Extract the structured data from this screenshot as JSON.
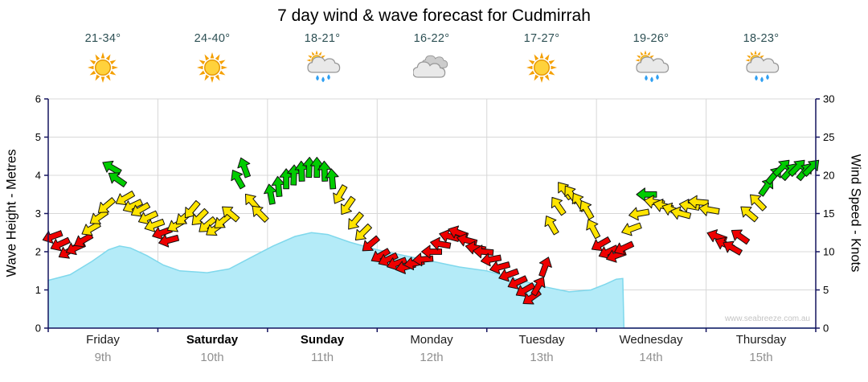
{
  "title": "7 day wind & wave forecast for Cudmirrah",
  "watermark": "www.seabreeze.com.au",
  "days": [
    {
      "name": "Friday",
      "date": "9th",
      "temp": "21-34°",
      "icon": "sunny",
      "weekend": false
    },
    {
      "name": "Saturday",
      "date": "10th",
      "temp": "24-40°",
      "icon": "sunny",
      "weekend": true
    },
    {
      "name": "Sunday",
      "date": "11th",
      "temp": "18-21°",
      "icon": "sun-rain",
      "weekend": true
    },
    {
      "name": "Monday",
      "date": "12th",
      "temp": "16-22°",
      "icon": "cloudy",
      "weekend": false
    },
    {
      "name": "Tuesday",
      "date": "13th",
      "temp": "17-27°",
      "icon": "sunny",
      "weekend": false
    },
    {
      "name": "Wednesday",
      "date": "14th",
      "temp": "19-26°",
      "icon": "sun-rain",
      "weekend": false
    },
    {
      "name": "Thursday",
      "date": "15th",
      "temp": "18-23°",
      "icon": "sun-rain",
      "weekend": false
    }
  ],
  "axes": {
    "left_label": "Wave Height - Metres",
    "right_label": "Wind Speed - Knots",
    "wave_ticks": [
      0,
      1,
      2,
      3,
      4,
      5,
      6
    ],
    "wind_ticks": [
      0,
      5,
      10,
      15,
      20,
      25,
      30
    ],
    "wave_max": 6,
    "wind_max": 30
  },
  "colors": {
    "wind_red": "#ee0000",
    "wind_yellow": "#ffe400",
    "wind_green": "#00cc00",
    "wave_fill": "#b4ebf8",
    "wave_stroke": "#7fd8ec",
    "axis": "#14145f",
    "grid": "#d8d8d8",
    "temp_text": "#2d5054",
    "date_text": "#909090"
  },
  "chart_data": [
    {
      "type": "area",
      "name": "Wave Height (m)",
      "x_unit": "days from Friday 9th 00:00",
      "ylim": [
        0,
        6
      ],
      "x": [
        0,
        0.2,
        0.4,
        0.55,
        0.65,
        0.75,
        0.9,
        1.05,
        1.2,
        1.45,
        1.65,
        1.85,
        2.05,
        2.25,
        2.4,
        2.55,
        2.75,
        3.0,
        3.25,
        3.5,
        3.75,
        4.0,
        4.25,
        4.5,
        4.75,
        4.95,
        5.08,
        5.18,
        5.24,
        5.25,
        7
      ],
      "y": [
        1.25,
        1.4,
        1.75,
        2.05,
        2.15,
        2.1,
        1.9,
        1.65,
        1.5,
        1.45,
        1.55,
        1.85,
        2.15,
        2.4,
        2.5,
        2.45,
        2.25,
        2.05,
        1.9,
        1.75,
        1.6,
        1.5,
        1.3,
        1.1,
        0.95,
        1.0,
        1.15,
        1.28,
        1.3,
        0,
        0
      ]
    },
    {
      "type": "scatter",
      "name": "Wind Speed (knots)",
      "point_format": [
        "day_fraction",
        "knots",
        "color_band",
        "arrow_rotation_deg"
      ],
      "ylim": [
        0,
        30
      ],
      "points": [
        [
          0.04,
          12,
          "r",
          160
        ],
        [
          0.11,
          11,
          "r",
          155
        ],
        [
          0.18,
          10,
          "r",
          150
        ],
        [
          0.25,
          10.5,
          "r",
          155
        ],
        [
          0.32,
          11.5,
          "r",
          150
        ],
        [
          0.39,
          13,
          "y",
          150
        ],
        [
          0.46,
          14.5,
          "y",
          145
        ],
        [
          0.53,
          16,
          "y",
          140
        ],
        [
          0.58,
          21,
          "g",
          -150
        ],
        [
          0.63,
          19.5,
          "g",
          -145
        ],
        [
          0.7,
          17,
          "y",
          150
        ],
        [
          0.77,
          16,
          "y",
          155
        ],
        [
          0.84,
          15.5,
          "y",
          150
        ],
        [
          0.91,
          14.5,
          "y",
          155
        ],
        [
          0.97,
          13.5,
          "y",
          160
        ],
        [
          1.04,
          12.5,
          "r",
          160
        ],
        [
          1.1,
          11.5,
          "r",
          165
        ],
        [
          1.17,
          13.5,
          "y",
          150
        ],
        [
          1.24,
          14.5,
          "y",
          140
        ],
        [
          1.31,
          15.5,
          "y",
          130
        ],
        [
          1.38,
          14.5,
          "y",
          135
        ],
        [
          1.45,
          13.5,
          "y",
          140
        ],
        [
          1.52,
          13,
          "y",
          145
        ],
        [
          1.59,
          14,
          "y",
          140
        ],
        [
          1.66,
          15,
          "y",
          -140
        ],
        [
          1.73,
          19.5,
          "g",
          -120
        ],
        [
          1.79,
          21,
          "g",
          -110
        ],
        [
          1.86,
          16.5,
          "y",
          -130
        ],
        [
          1.93,
          15,
          "y",
          -135
        ],
        [
          2.03,
          17.5,
          "g",
          -100
        ],
        [
          2.1,
          18.5,
          "g",
          -95
        ],
        [
          2.17,
          19.5,
          "g",
          -90
        ],
        [
          2.24,
          20,
          "g",
          -88
        ],
        [
          2.31,
          20.5,
          "g",
          -92
        ],
        [
          2.38,
          21,
          "g",
          -88
        ],
        [
          2.45,
          21,
          "g",
          -90
        ],
        [
          2.52,
          20.5,
          "g",
          -92
        ],
        [
          2.59,
          19.5,
          "g",
          -95
        ],
        [
          2.66,
          17.5,
          "y",
          120
        ],
        [
          2.73,
          16,
          "y",
          125
        ],
        [
          2.8,
          14,
          "y",
          130
        ],
        [
          2.87,
          12.5,
          "y",
          135
        ],
        [
          2.94,
          11,
          "r",
          140
        ],
        [
          3.03,
          9.5,
          "r",
          150
        ],
        [
          3.1,
          9,
          "r",
          155
        ],
        [
          3.18,
          8.5,
          "r",
          160
        ],
        [
          3.26,
          8,
          "r",
          165
        ],
        [
          3.34,
          8.5,
          "r",
          170
        ],
        [
          3.42,
          9,
          "r",
          175
        ],
        [
          3.5,
          10,
          "r",
          180
        ],
        [
          3.58,
          11,
          "r",
          -170
        ],
        [
          3.66,
          12,
          "r",
          -165
        ],
        [
          3.74,
          12.5,
          "r",
          -160
        ],
        [
          3.82,
          11.5,
          "r",
          -165
        ],
        [
          3.9,
          10.5,
          "r",
          -170
        ],
        [
          3.97,
          10,
          "r",
          -175
        ],
        [
          4.04,
          9,
          "r",
          170
        ],
        [
          4.12,
          8,
          "r",
          165
        ],
        [
          4.2,
          7,
          "r",
          160
        ],
        [
          4.28,
          6,
          "r",
          155
        ],
        [
          4.35,
          5,
          "r",
          150
        ],
        [
          4.41,
          4,
          "r",
          145
        ],
        [
          4.47,
          5.5,
          "r",
          -60
        ],
        [
          4.53,
          8,
          "r",
          -70
        ],
        [
          4.59,
          13.5,
          "y",
          -120
        ],
        [
          4.65,
          16,
          "y",
          -125
        ],
        [
          4.71,
          18,
          "y",
          -128
        ],
        [
          4.77,
          17.5,
          "y",
          -125
        ],
        [
          4.84,
          16.5,
          "y",
          -122
        ],
        [
          4.91,
          15.5,
          "y",
          -120
        ],
        [
          4.97,
          13,
          "y",
          -118
        ],
        [
          5.04,
          11,
          "r",
          150
        ],
        [
          5.11,
          10,
          "r",
          155
        ],
        [
          5.18,
          9.5,
          "r",
          160
        ],
        [
          5.25,
          10.5,
          "r",
          155
        ],
        [
          5.32,
          13,
          "y",
          160
        ],
        [
          5.39,
          15,
          "y",
          170
        ],
        [
          5.46,
          17.5,
          "g",
          180
        ],
        [
          5.53,
          16.5,
          "y",
          -170
        ],
        [
          5.61,
          16,
          "y",
          -165
        ],
        [
          5.69,
          15.5,
          "y",
          -160
        ],
        [
          5.77,
          15,
          "y",
          -165
        ],
        [
          5.85,
          16,
          "y",
          -170
        ],
        [
          5.93,
          16.5,
          "y",
          -175
        ],
        [
          6.03,
          15.5,
          "y",
          -170
        ],
        [
          6.1,
          12,
          "r",
          -160
        ],
        [
          6.17,
          11,
          "r",
          -155
        ],
        [
          6.24,
          10.5,
          "r",
          -150
        ],
        [
          6.31,
          12,
          "r",
          -145
        ],
        [
          6.39,
          15,
          "y",
          -140
        ],
        [
          6.47,
          16.5,
          "y",
          -135
        ],
        [
          6.55,
          18.5,
          "g",
          -55
        ],
        [
          6.62,
          20,
          "g",
          -50
        ],
        [
          6.69,
          21,
          "g",
          -45
        ],
        [
          6.76,
          20.5,
          "g",
          -48
        ],
        [
          6.83,
          21,
          "g",
          -45
        ],
        [
          6.9,
          20.5,
          "g",
          -50
        ],
        [
          6.96,
          21,
          "g",
          -45
        ]
      ]
    }
  ]
}
